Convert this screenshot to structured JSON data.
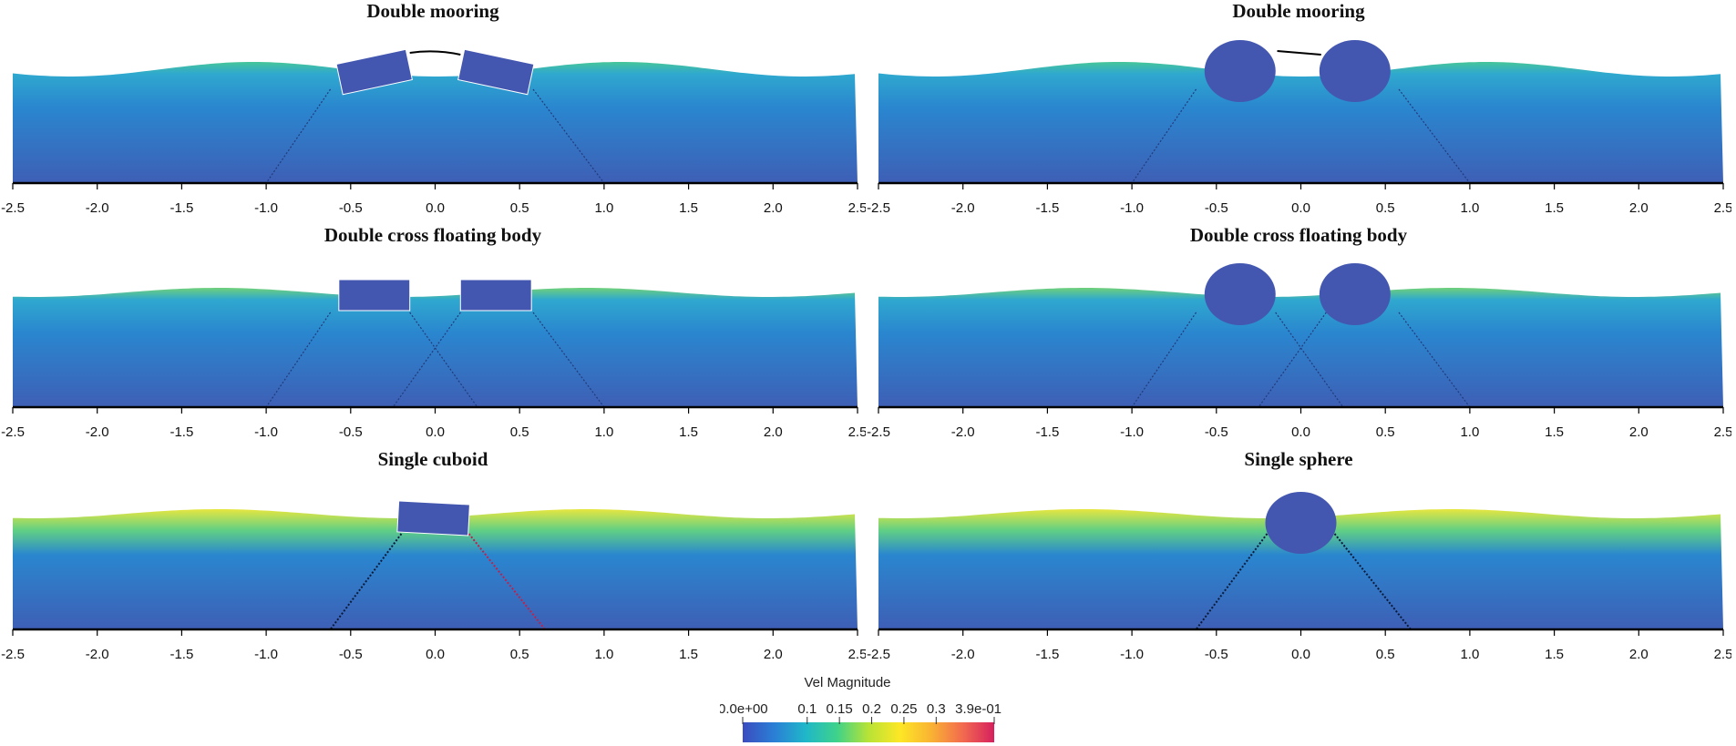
{
  "panels": [
    {
      "title": "Double mooring",
      "body": "double-cuboid",
      "mooring": "double"
    },
    {
      "title": "Double mooring",
      "body": "double-sphere",
      "mooring": "double"
    },
    {
      "title": "Double cross floating body",
      "body": "double-cuboid",
      "mooring": "cross"
    },
    {
      "title": "Double cross floating body",
      "body": "double-sphere",
      "mooring": "cross"
    },
    {
      "title": "Single cuboid",
      "body": "single-cuboid",
      "mooring": "single"
    },
    {
      "title": "Single sphere",
      "body": "single-sphere",
      "mooring": "single"
    }
  ],
  "x_axis": {
    "range": [
      -2.5,
      2.5
    ],
    "tick_values": [
      -2.5,
      -2.0,
      -1.5,
      -1.0,
      -0.5,
      0.0,
      0.5,
      1.0,
      1.5,
      2.0,
      2.5
    ],
    "tick_labels": [
      "-2.5",
      "-2.0",
      "-1.5",
      "-1.0",
      "-0.5",
      "0.0",
      "0.5",
      "1.0",
      "1.5",
      "2.0",
      "2.5"
    ]
  },
  "colorbar": {
    "title": "Vel Magnitude",
    "range": [
      0.0,
      0.39
    ],
    "tick_values": [
      0.0,
      0.1,
      0.15,
      0.2,
      0.25,
      0.3,
      0.39
    ],
    "tick_labels": [
      "0.0e+00",
      "0.1",
      "0.15",
      "0.2",
      "0.25",
      "0.3",
      "3.9e-01"
    ],
    "colors": [
      "#3b4cc0",
      "#2a7fd5",
      "#1fb7c9",
      "#3fd28a",
      "#b8e336",
      "#fde725",
      "#f9b233",
      "#f26a4f",
      "#d6205e"
    ]
  },
  "colors": {
    "water_deep": "#3e5fb5",
    "water_mid": "#2a86cf",
    "body": "#4457b0",
    "axis": "#000000"
  }
}
